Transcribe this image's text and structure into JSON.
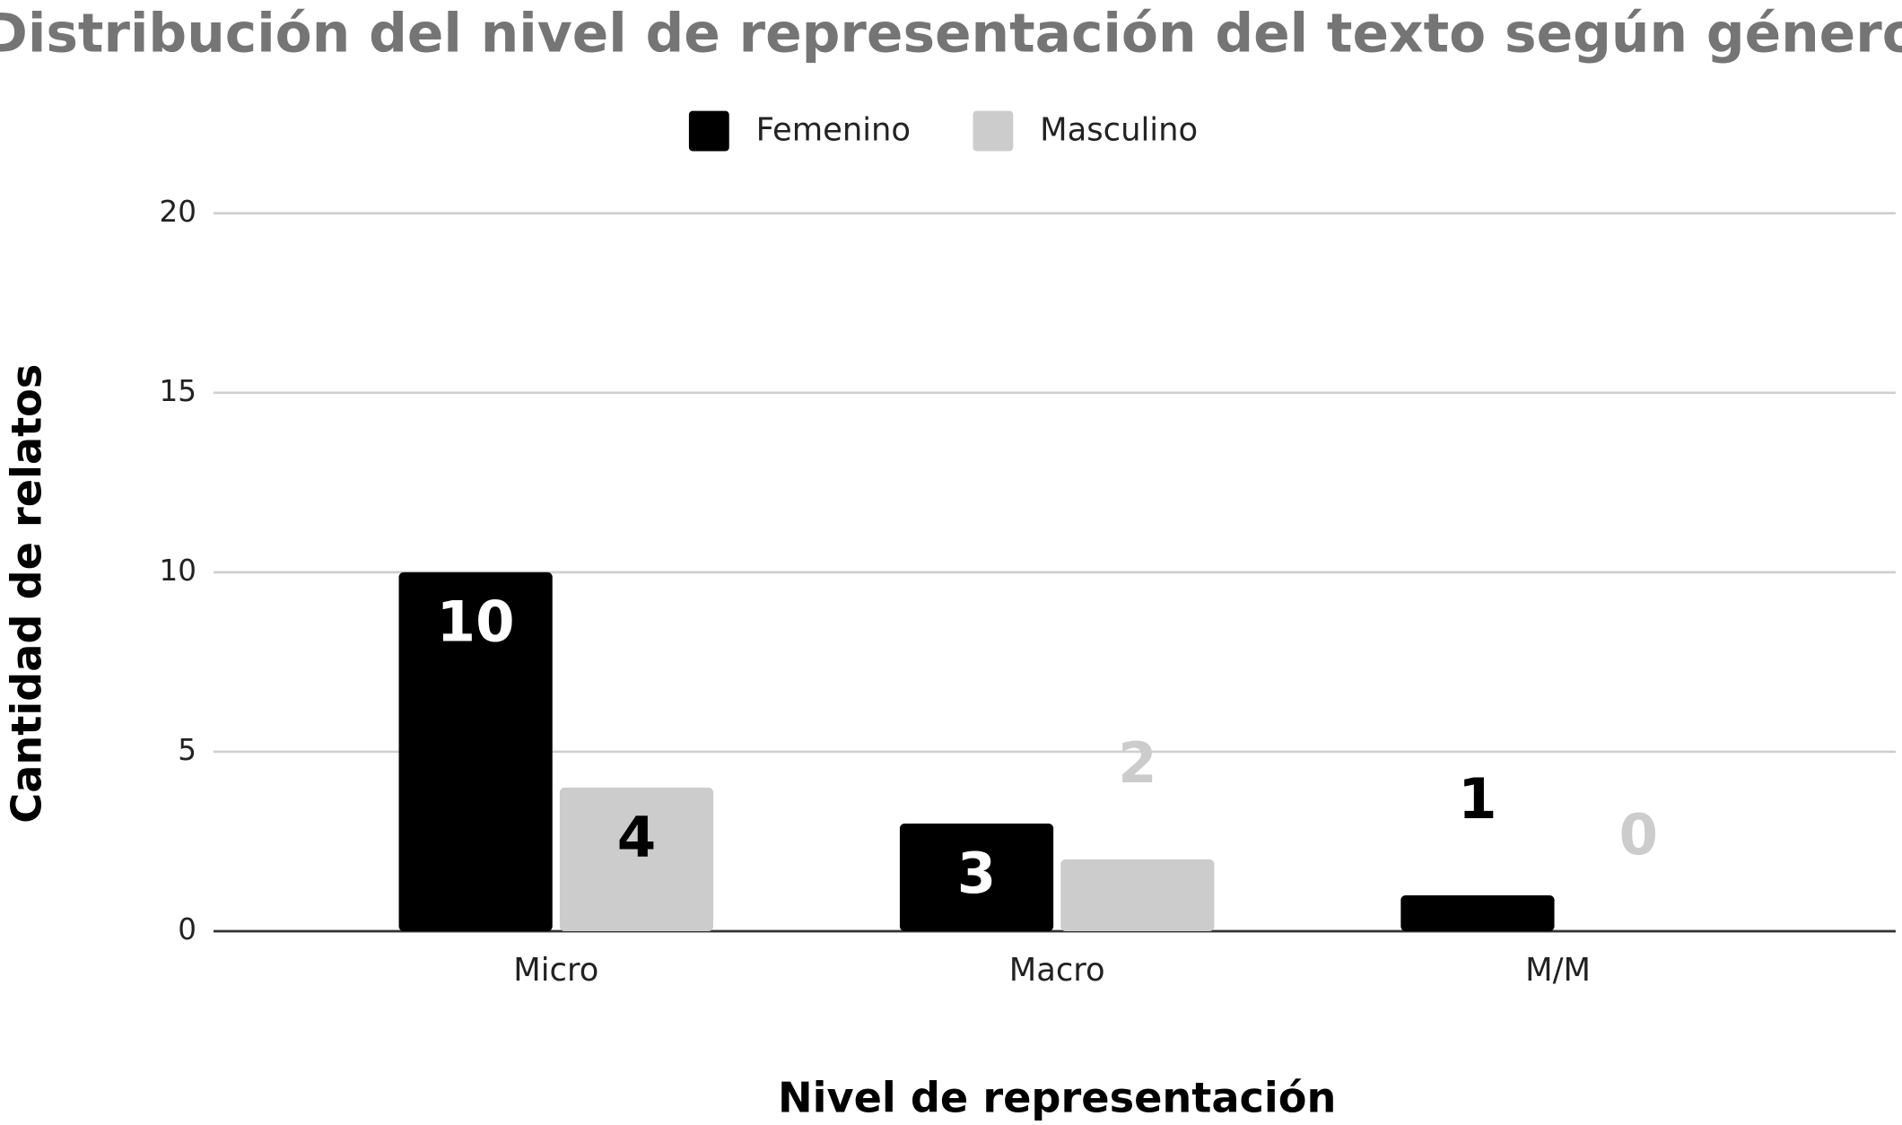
{
  "chart_data": {
    "type": "bar",
    "title": "Distribución del nivel de representación del texto según género",
    "x_label": "Nivel de representación",
    "y_label": "Cantidad de relatos",
    "categories": [
      "Micro",
      "Macro",
      "M/M"
    ],
    "series": [
      {
        "name": "Femenino",
        "color": "#000000",
        "values": [
          10,
          3,
          1
        ]
      },
      {
        "name": "Masculino",
        "color": "#cccccc",
        "values": [
          4,
          2,
          0
        ]
      }
    ],
    "ylim": [
      0,
      20
    ],
    "yticks": [
      0,
      5,
      10,
      15,
      20
    ],
    "grid": true,
    "legend": "top",
    "data_labels": true
  }
}
